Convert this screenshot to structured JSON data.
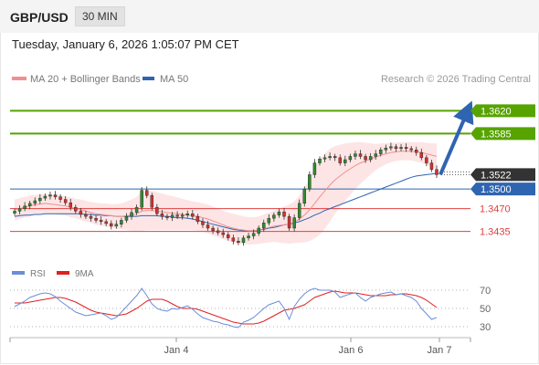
{
  "header": {
    "symbol": "GBP/USD",
    "timeframe": "30 MIN"
  },
  "date_text": "Tuesday, January 6, 2026 1:05:07 PM CET",
  "legend": {
    "ma20_bollinger": "MA 20 + Bollinger Bands",
    "ma50": "MA 50",
    "credit": "Research © 2026 Trading Central"
  },
  "rsi_legend": {
    "rsi": "RSI",
    "ma9": "9MA"
  },
  "colors": {
    "green": "#57a300",
    "blue": "#2f64b0",
    "red": "#e04040",
    "current": "#333333",
    "bollinger_fill": "#fde0e0",
    "ma20": "#f09090",
    "ma50": "#2f64b0",
    "bull": "#2e8b2e",
    "bear": "#d23030",
    "rsi_line": "#6a8ed8",
    "ma9_line": "#e02020"
  },
  "chart_data": {
    "type": "candlestick",
    "y_range": [
      1.3405,
      1.365
    ],
    "x_ticks": [
      "Jan 4",
      "Jan 6",
      "Jan 7"
    ],
    "levels": [
      {
        "value": 1.362,
        "label": "1.3620",
        "kind": "resistance"
      },
      {
        "value": 1.3585,
        "label": "1.3585",
        "kind": "resistance"
      },
      {
        "value": 1.3522,
        "label": "1.3522",
        "kind": "current"
      },
      {
        "value": 1.35,
        "label": "1.3500",
        "kind": "pivot"
      },
      {
        "value": 1.347,
        "label": "1.3470",
        "kind": "support"
      },
      {
        "value": 1.3435,
        "label": "1.3435",
        "kind": "support"
      }
    ],
    "target_arrow": {
      "from": 1.3522,
      "to": 1.362
    },
    "close_path": [
      1.3466,
      1.347,
      1.3474,
      1.3478,
      1.3482,
      1.3486,
      1.3489,
      1.3491,
      1.3488,
      1.3484,
      1.3479,
      1.3472,
      1.3466,
      1.3461,
      1.3458,
      1.3455,
      1.3452,
      1.345,
      1.3447,
      1.3443,
      1.3446,
      1.3452,
      1.3458,
      1.3464,
      1.3472,
      1.3498,
      1.349,
      1.3472,
      1.3462,
      1.3458,
      1.3456,
      1.346,
      1.3458,
      1.346,
      1.3462,
      1.3458,
      1.345,
      1.3445,
      1.344,
      1.3436,
      1.3433,
      1.343,
      1.3425,
      1.342,
      1.3418,
      1.3425,
      1.3428,
      1.3432,
      1.344,
      1.3448,
      1.3455,
      1.346,
      1.3465,
      1.3458,
      1.344,
      1.3456,
      1.3478,
      1.35,
      1.3522,
      1.354,
      1.3546,
      1.3548,
      1.355,
      1.3548,
      1.354,
      1.3545,
      1.355,
      1.3554,
      1.355,
      1.3545,
      1.355,
      1.3554,
      1.356,
      1.3563,
      1.3565,
      1.3562,
      1.3564,
      1.3562,
      1.356,
      1.3556,
      1.3548,
      1.354,
      1.353,
      1.3522
    ],
    "ma20_path": [
      1.3468,
      1.347,
      1.3472,
      1.3474,
      1.3476,
      1.3477,
      1.3478,
      1.3477,
      1.3476,
      1.3475,
      1.3474,
      1.3472,
      1.347,
      1.3468,
      1.3466,
      1.3464,
      1.3462,
      1.3461,
      1.346,
      1.3459,
      1.3458,
      1.3458,
      1.3459,
      1.346,
      1.3462,
      1.3466,
      1.3467,
      1.3467,
      1.3466,
      1.3465,
      1.3464,
      1.3463,
      1.3462,
      1.3461,
      1.346,
      1.3459,
      1.3458,
      1.3456,
      1.3454,
      1.3451,
      1.3448,
      1.3445,
      1.3442,
      1.344,
      1.3438,
      1.3437,
      1.3436,
      1.3436,
      1.3437,
      1.3439,
      1.3441,
      1.3443,
      1.3444,
      1.3445,
      1.3446,
      1.3449,
      1.3454,
      1.346,
      1.3468,
      1.3478,
      1.3488,
      1.3497,
      1.3506,
      1.3514,
      1.352,
      1.3526,
      1.3531,
      1.3536,
      1.354,
      1.3543,
      1.3546,
      1.3549,
      1.3552,
      1.3554,
      1.3556,
      1.3557,
      1.3558,
      1.3558,
      1.3558,
      1.3557,
      1.3556,
      1.3554,
      1.3552,
      1.355
    ],
    "band_width_path": [
      16,
      16,
      16,
      16,
      15,
      15,
      15,
      15,
      15,
      15,
      15,
      15,
      15,
      16,
      16,
      16,
      17,
      17,
      18,
      18,
      19,
      20,
      22,
      24,
      26,
      30,
      30,
      30,
      29,
      28,
      27,
      26,
      25,
      24,
      23,
      22,
      22,
      22,
      22,
      22,
      22,
      22,
      22,
      22,
      22,
      21,
      21,
      21,
      21,
      22,
      23,
      24,
      26,
      28,
      30,
      32,
      36,
      42,
      48,
      54,
      58,
      58,
      56,
      52,
      48,
      44,
      40,
      36,
      32,
      28,
      24,
      20,
      18,
      16,
      15,
      14,
      14,
      14,
      14,
      15,
      16,
      17,
      18,
      20
    ],
    "ma50_path": [
      1.3458,
      1.3459,
      1.346,
      1.346,
      1.3461,
      1.3461,
      1.3462,
      1.3462,
      1.3462,
      1.3462,
      1.3462,
      1.3462,
      1.3462,
      1.3462,
      1.3461,
      1.3461,
      1.346,
      1.346,
      1.3459,
      1.3459,
      1.3458,
      1.3458,
      1.3458,
      1.3458,
      1.3458,
      1.3459,
      1.3459,
      1.3459,
      1.3459,
      1.3458,
      1.3458,
      1.3457,
      1.3456,
      1.3456,
      1.3455,
      1.3454,
      1.3452,
      1.345,
      1.3448,
      1.3446,
      1.3444,
      1.3442,
      1.344,
      1.3438,
      1.3437,
      1.3436,
      1.3436,
      1.3436,
      1.3437,
      1.3438,
      1.344,
      1.3441,
      1.3443,
      1.3445,
      1.3446,
      1.3448,
      1.345,
      1.3453,
      1.3456,
      1.346,
      1.3463,
      1.3467,
      1.347,
      1.3473,
      1.3476,
      1.3479,
      1.3482,
      1.3485,
      1.3488,
      1.3491,
      1.3494,
      1.3497,
      1.35,
      1.3503,
      1.3506,
      1.3509,
      1.3512,
      1.3515,
      1.3518,
      1.352,
      1.3521,
      1.3522,
      1.3523,
      1.3524
    ],
    "rsi": {
      "levels": [
        70,
        50,
        30
      ],
      "range": [
        20,
        80
      ],
      "rsi_values": [
        52,
        55,
        58,
        62,
        64,
        66,
        67,
        66,
        63,
        58,
        54,
        50,
        46,
        44,
        42,
        43,
        44,
        45,
        42,
        38,
        40,
        46,
        52,
        58,
        64,
        72,
        64,
        55,
        50,
        48,
        47,
        50,
        49,
        51,
        53,
        49,
        44,
        40,
        38,
        36,
        35,
        33,
        32,
        30,
        29,
        35,
        37,
        40,
        45,
        50,
        54,
        56,
        58,
        50,
        38,
        52,
        60,
        66,
        70,
        72,
        70,
        70,
        70,
        68,
        62,
        64,
        66,
        67,
        62,
        58,
        62,
        64,
        66,
        67,
        68,
        65,
        66,
        64,
        62,
        58,
        50,
        44,
        38,
        40
      ],
      "ma9_values": [
        56,
        56,
        56,
        57,
        58,
        59,
        60,
        61,
        62,
        62,
        61,
        59,
        57,
        54,
        51,
        48,
        46,
        45,
        44,
        43,
        42,
        43,
        44,
        47,
        50,
        54,
        58,
        60,
        60,
        60,
        58,
        55,
        52,
        50,
        50,
        50,
        49,
        47,
        45,
        43,
        41,
        39,
        37,
        35,
        34,
        33,
        33,
        33,
        34,
        36,
        39,
        42,
        45,
        48,
        49,
        50,
        52,
        54,
        58,
        62,
        64,
        66,
        68,
        69,
        68,
        67,
        67,
        67,
        66,
        65,
        64,
        64,
        64,
        64,
        65,
        65,
        66,
        66,
        65,
        64,
        62,
        59,
        55,
        51
      ]
    }
  }
}
